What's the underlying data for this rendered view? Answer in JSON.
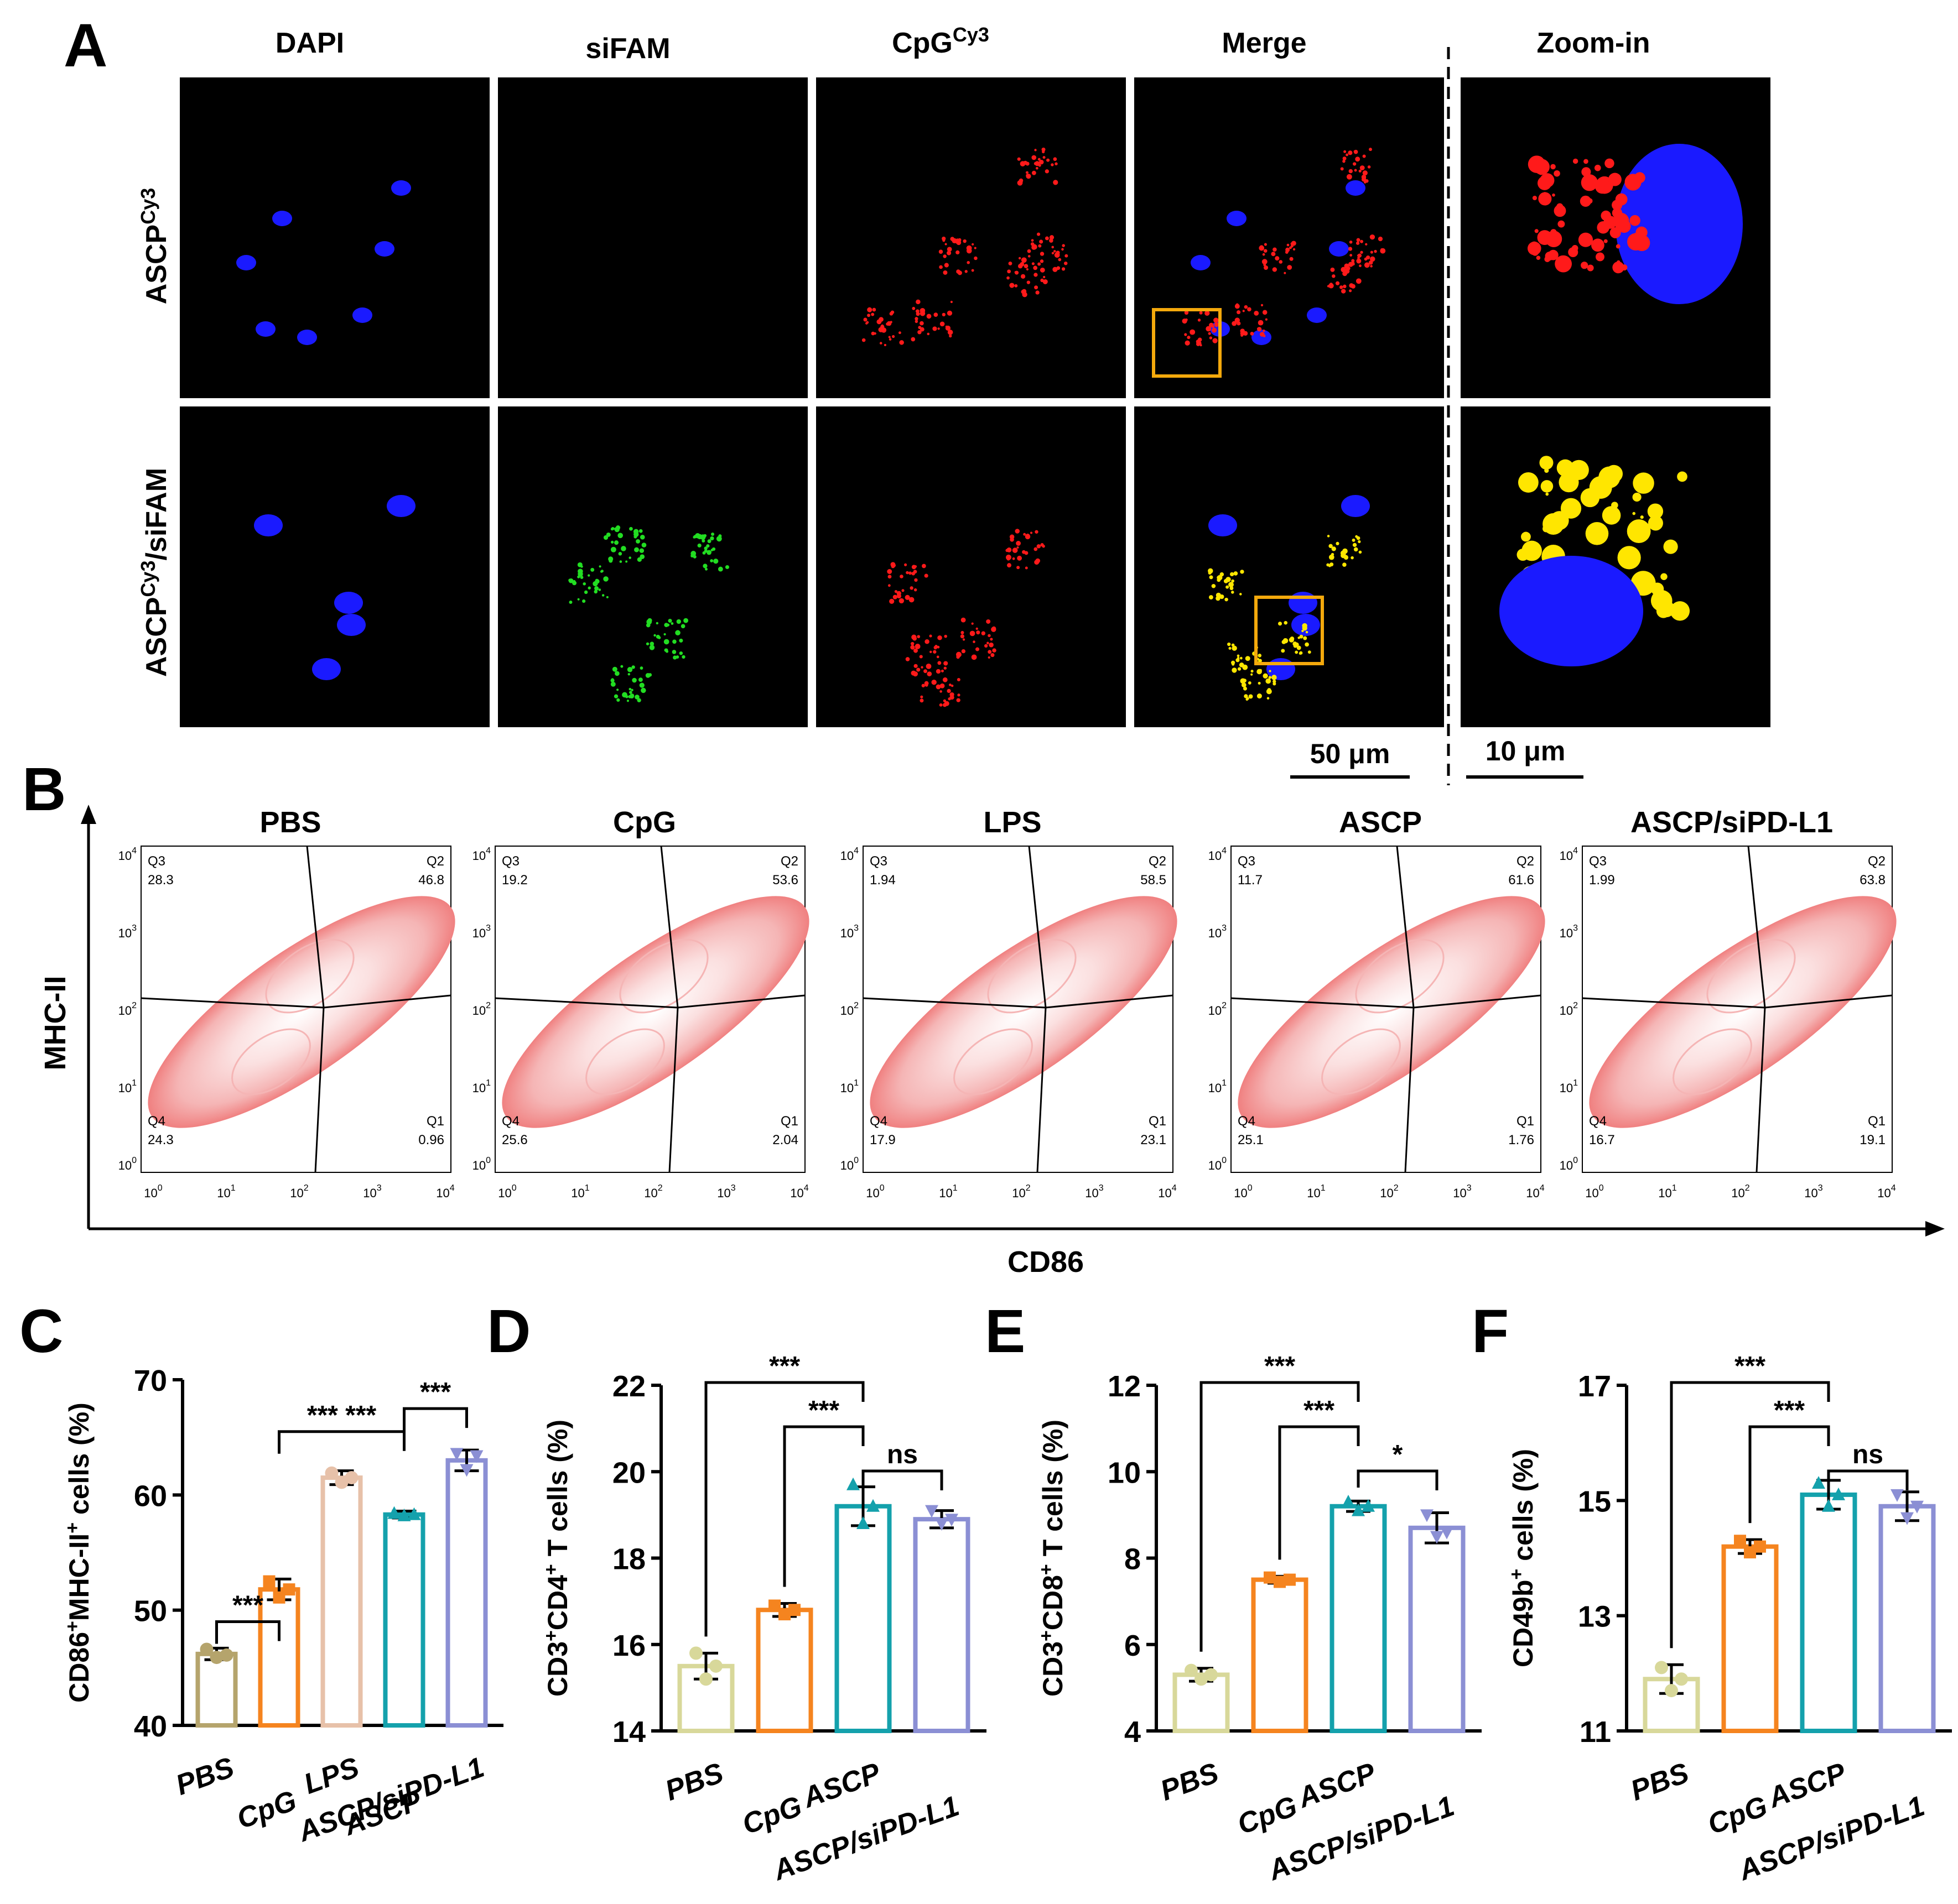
{
  "panel_letters": [
    "A",
    "B",
    "C",
    "D",
    "E",
    "F"
  ],
  "panelA": {
    "columns": [
      "DAPI",
      "siFAM",
      "CpG",
      "Merge",
      "Zoom-in"
    ],
    "cpg_superscript": "Cy3",
    "rows": [
      {
        "base": "ASCP",
        "sup": "Cy3",
        "tail": ""
      },
      {
        "base": "ASCP",
        "sup": "Cy3",
        "tail": "/siFAM"
      }
    ],
    "scalebars": [
      "50 μm",
      "10 μm"
    ],
    "colors": {
      "dapi": "#1a1aff",
      "fam": "#22dd22",
      "cy3": "#ff1a1a",
      "merge": "#ffe600",
      "box": "#f4a90c"
    }
  },
  "panelB": {
    "groups": [
      "PBS",
      "CpG",
      "LPS",
      "ASCP",
      "ASCP/siPD-L1"
    ],
    "y_axis_label": "MHC-II",
    "x_axis_label": "CD86",
    "quadrant_names": [
      "Q1",
      "Q2",
      "Q3",
      "Q4"
    ],
    "quadrants": [
      {
        "Q1": "0.96",
        "Q2": "46.8",
        "Q3": "28.3",
        "Q4": "24.3"
      },
      {
        "Q1": "2.04",
        "Q2": "53.6",
        "Q3": "19.2",
        "Q4": "25.6"
      },
      {
        "Q1": "23.1",
        "Q2": "58.5",
        "Q3": "1.94",
        "Q4": "17.9"
      },
      {
        "Q1": "1.76",
        "Q2": "61.6",
        "Q3": "11.7",
        "Q4": "25.1"
      },
      {
        "Q1": "19.1",
        "Q2": "63.8",
        "Q3": "1.99",
        "Q4": "16.7"
      }
    ],
    "log_ticks": [
      "10",
      "10",
      "10",
      "10",
      "10"
    ],
    "log_exponents": [
      "0",
      "1",
      "2",
      "3",
      "4"
    ],
    "contour_color": "#f08080"
  },
  "chart_data": [
    {
      "type": "bar",
      "panel": "C",
      "ylabel": {
        "base": "CD86",
        "sup1": "+",
        "mid": "MHC-II",
        "sup2": "+",
        "tail": " cells (%)"
      },
      "categories": [
        "PBS",
        "CpG",
        "LPS",
        "ASCP",
        "ASCP/siPD-L1"
      ],
      "values": [
        46.2,
        51.8,
        61.5,
        58.3,
        63.0
      ],
      "errors": [
        0.5,
        0.9,
        0.6,
        0.3,
        0.9
      ],
      "points": [
        [
          46.6,
          45.9,
          46.1
        ],
        [
          52.5,
          51.1,
          51.8
        ],
        [
          61.9,
          61.1,
          61.5
        ],
        [
          58.4,
          58.2,
          58.3
        ],
        [
          63.6,
          62.2,
          63.4
        ]
      ],
      "colors": [
        "#b5a46c",
        "#f5841f",
        "#e7c1a9",
        "#14a1ac",
        "#8b8fd4"
      ],
      "markers": [
        "circle",
        "square",
        "circle",
        "triangle",
        "triangle-down"
      ],
      "ylim": [
        40,
        70
      ],
      "yticks": [
        "40",
        "50",
        "60",
        "70"
      ],
      "sig": [
        {
          "from": 0,
          "to": 1,
          "label": "***"
        },
        {
          "from": 1,
          "to": 3,
          "label": "*** ***"
        },
        {
          "from": 3,
          "to": 4,
          "label": "***"
        }
      ]
    },
    {
      "type": "bar",
      "panel": "D",
      "ylabel": {
        "base": "CD3",
        "sup1": "+",
        "mid": "CD4",
        "sup2": "+",
        "tail": " T cells (%)"
      },
      "categories": [
        "PBS",
        "CpG",
        "ASCP",
        "ASCP/siPD-L1"
      ],
      "values": [
        15.5,
        16.8,
        19.2,
        18.9
      ],
      "errors": [
        0.3,
        0.15,
        0.45,
        0.2
      ],
      "points": [
        [
          15.8,
          15.2,
          15.5
        ],
        [
          16.9,
          16.7,
          16.8
        ],
        [
          19.7,
          18.8,
          19.2
        ],
        [
          19.1,
          18.8,
          18.9
        ]
      ],
      "colors": [
        "#d8d89a",
        "#f5841f",
        "#14a1ac",
        "#8b8fd4"
      ],
      "markers": [
        "circle",
        "square",
        "triangle",
        "triangle-down"
      ],
      "ylim": [
        14,
        22
      ],
      "yticks": [
        "14",
        "16",
        "18",
        "20",
        "22"
      ],
      "sig": [
        {
          "from": 0,
          "to": 2,
          "label": "***"
        },
        {
          "from": 1,
          "to": 2,
          "label": "***"
        },
        {
          "from": 2,
          "to": 3,
          "label": "ns"
        }
      ]
    },
    {
      "type": "bar",
      "panel": "E",
      "ylabel": {
        "base": "CD3",
        "sup1": "+",
        "mid": "CD8",
        "sup2": "+",
        "tail": " T cells (%)"
      },
      "categories": [
        "PBS",
        "CpG",
        "ASCP",
        "ASCP/siPD-L1"
      ],
      "values": [
        5.3,
        7.5,
        9.2,
        8.7
      ],
      "errors": [
        0.15,
        0.08,
        0.12,
        0.35
      ],
      "points": [
        [
          5.4,
          5.2,
          5.3
        ],
        [
          7.55,
          7.45,
          7.5
        ],
        [
          9.3,
          9.1,
          9.2
        ],
        [
          9.0,
          8.5,
          8.6
        ]
      ],
      "colors": [
        "#d8d89a",
        "#f5841f",
        "#14a1ac",
        "#8b8fd4"
      ],
      "markers": [
        "circle",
        "square",
        "triangle",
        "triangle-down"
      ],
      "ylim": [
        4,
        12
      ],
      "yticks": [
        "4",
        "6",
        "8",
        "10",
        "12"
      ],
      "sig": [
        {
          "from": 0,
          "to": 2,
          "label": "***"
        },
        {
          "from": 1,
          "to": 2,
          "label": "***"
        },
        {
          "from": 2,
          "to": 3,
          "label": "*"
        }
      ]
    },
    {
      "type": "bar",
      "panel": "F",
      "ylabel": {
        "base": "CD49b",
        "sup1": "+",
        "mid": "",
        "sup2": "",
        "tail": " cells (%)"
      },
      "categories": [
        "PBS",
        "CpG",
        "ASCP",
        "ASCP/siPD-L1"
      ],
      "values": [
        11.9,
        14.2,
        15.1,
        14.9
      ],
      "errors": [
        0.25,
        0.12,
        0.25,
        0.25
      ],
      "points": [
        [
          12.1,
          11.7,
          11.9
        ],
        [
          14.3,
          14.1,
          14.2
        ],
        [
          15.3,
          14.9,
          15.1
        ],
        [
          15.1,
          14.7,
          14.9
        ]
      ],
      "colors": [
        "#d8d89a",
        "#f5841f",
        "#14a1ac",
        "#8b8fd4"
      ],
      "markers": [
        "circle",
        "square",
        "triangle",
        "triangle-down"
      ],
      "ylim": [
        11,
        17
      ],
      "yticks": [
        "11",
        "13",
        "15",
        "17"
      ],
      "sig": [
        {
          "from": 0,
          "to": 2,
          "label": "***"
        },
        {
          "from": 1,
          "to": 2,
          "label": "***"
        },
        {
          "from": 2,
          "to": 3,
          "label": "ns"
        }
      ]
    }
  ]
}
